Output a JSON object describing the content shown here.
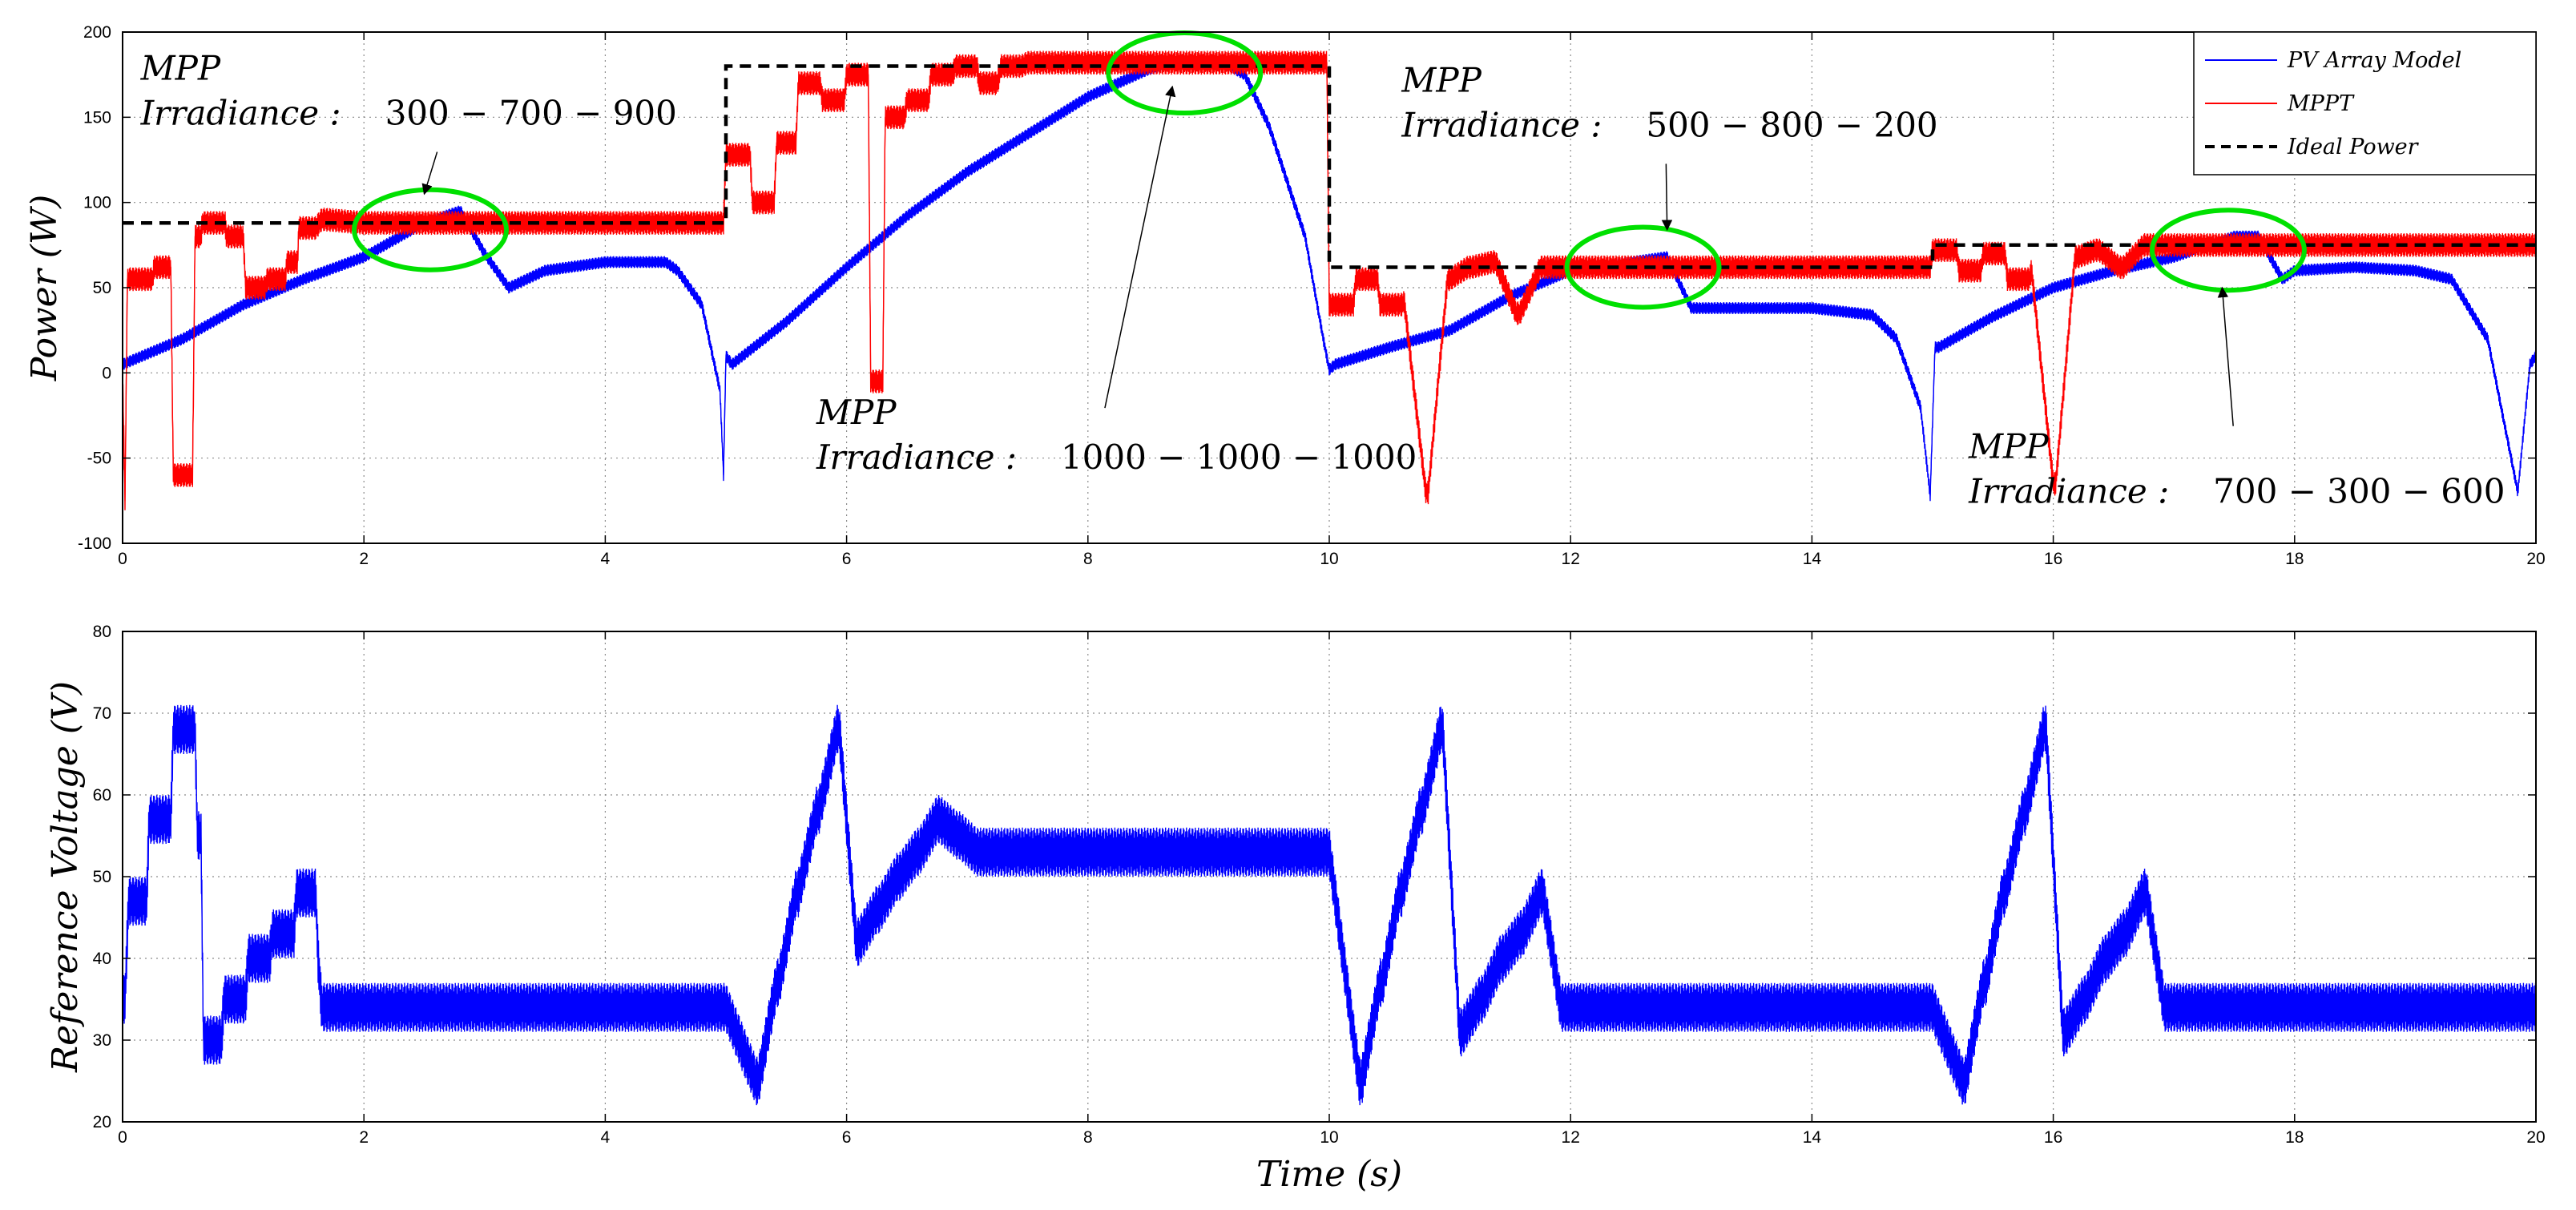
{
  "chart_data": [
    {
      "id": "power",
      "type": "line",
      "title": "",
      "xlabel": "",
      "ylabel": "Power (W)",
      "xlim": [
        0,
        20
      ],
      "ylim": [
        -100,
        200
      ],
      "xticks": [
        0,
        2,
        4,
        6,
        8,
        10,
        12,
        14,
        16,
        18,
        20
      ],
      "xtick_labels": [
        "0",
        "2",
        "4",
        "6",
        "8",
        "10",
        "12",
        "14",
        "16",
        "18",
        "20"
      ],
      "yticks": [
        -100,
        -50,
        0,
        50,
        100,
        150,
        200
      ],
      "ytick_labels": [
        "-100",
        "-50",
        "0",
        "50",
        "100",
        "150",
        "200"
      ],
      "grid": true,
      "legend_position": "top-right",
      "legend": [
        {
          "name": "PV Array Model",
          "color": "#0000ff",
          "style": "solid"
        },
        {
          "name": "MPPT",
          "color": "#ff0000",
          "style": "solid"
        },
        {
          "name": "Ideal Power",
          "color": "#000000",
          "style": "dashed"
        }
      ],
      "series": [
        {
          "name": "PV Array Model",
          "color": "#0000ff",
          "ripple": 7,
          "x": [
            0,
            0.5,
            1,
            1.5,
            2,
            2.5,
            2.8,
            3.0,
            3.2,
            3.5,
            4,
            4.5,
            4.6,
            4.8,
            4.95,
            4.98,
            5.0,
            5.05,
            5.5,
            6,
            6.5,
            7,
            7.5,
            8,
            8.5,
            8.8,
            9.1,
            9.3,
            9.5,
            9.8,
            9.95,
            10.0,
            10.05,
            10.5,
            11,
            11.5,
            12,
            12.5,
            12.8,
            13.0,
            13.5,
            14,
            14.5,
            14.7,
            14.9,
            14.98,
            15.02,
            15.05,
            15.5,
            16,
            16.5,
            17,
            17.5,
            17.7,
            17.9,
            18,
            18.5,
            19,
            19.3,
            19.6,
            19.85,
            19.95,
            20
          ],
          "y": [
            5,
            20,
            40,
            55,
            68,
            88,
            95,
            70,
            50,
            60,
            65,
            65,
            60,
            40,
            -10,
            -60,
            10,
            5,
            30,
            62,
            92,
            118,
            140,
            162,
            178,
            183,
            183,
            175,
            145,
            80,
            20,
            2,
            5,
            15,
            25,
            45,
            60,
            65,
            68,
            38,
            38,
            38,
            34,
            20,
            -20,
            -72,
            15,
            15,
            33,
            50,
            60,
            68,
            80,
            80,
            55,
            60,
            62,
            60,
            55,
            20,
            -70,
            5,
            10
          ]
        },
        {
          "name": "MPPT",
          "color": "#ff0000",
          "ripple": 14,
          "x": [
            0,
            0.02,
            0.04,
            0.06,
            0.25,
            0.26,
            0.4,
            0.42,
            0.58,
            0.6,
            0.65,
            0.66,
            0.85,
            0.86,
            1.0,
            1.02,
            1.18,
            1.2,
            1.35,
            1.36,
            1.45,
            1.46,
            1.6,
            1.65,
            1.68,
            2.0,
            2.5,
            3,
            3.5,
            4,
            4.5,
            4.98,
            5.0,
            5.02,
            5.2,
            5.22,
            5.4,
            5.42,
            5.58,
            5.6,
            5.78,
            5.8,
            5.98,
            6.0,
            6.18,
            6.2,
            6.3,
            6.32,
            6.48,
            6.5,
            6.68,
            6.7,
            6.88,
            6.9,
            7.08,
            7.1,
            7.25,
            7.28,
            7.45,
            7.5,
            7.6,
            8,
            8.5,
            9,
            9.5,
            9.98,
            10.0,
            10.02,
            10.2,
            10.22,
            10.4,
            10.42,
            10.6,
            10.62,
            10.8,
            10.82,
            10.98,
            11.0,
            11.15,
            11.18,
            11.35,
            11.38,
            11.55,
            11.58,
            11.75,
            11.78,
            11.95,
            11.98,
            12.15,
            12.2,
            12.5,
            13,
            13.5,
            14,
            14.5,
            14.98,
            15.0,
            15.02,
            15.2,
            15.22,
            15.4,
            15.42,
            15.6,
            15.62,
            15.8,
            15.82,
            16.0,
            16.02,
            16.18,
            16.2,
            16.35,
            16.38,
            16.55,
            16.58,
            16.75,
            16.78,
            16.95,
            16.98,
            17.15,
            17.18,
            17.4,
            18,
            18.5,
            19,
            19.5,
            20
          ],
          "y": [
            0,
            -75,
            55,
            55,
            55,
            62,
            62,
            -60,
            -60,
            80,
            80,
            88,
            88,
            80,
            80,
            50,
            50,
            55,
            55,
            65,
            65,
            85,
            85,
            90,
            90,
            88,
            88,
            88,
            88,
            88,
            88,
            88,
            128,
            128,
            128,
            100,
            100,
            135,
            135,
            170,
            170,
            160,
            160,
            175,
            175,
            -5,
            -5,
            150,
            150,
            160,
            160,
            175,
            175,
            180,
            180,
            170,
            170,
            180,
            180,
            182,
            182,
            182,
            182,
            182,
            182,
            182,
            40,
            40,
            40,
            55,
            55,
            40,
            40,
            42,
            -70,
            -70,
            55,
            55,
            62,
            62,
            65,
            65,
            35,
            35,
            62,
            62,
            62,
            62,
            62,
            62,
            62,
            62,
            62,
            62,
            62,
            62,
            72,
            72,
            72,
            60,
            60,
            70,
            70,
            55,
            55,
            60,
            -65,
            -65,
            68,
            68,
            72,
            72,
            62,
            62,
            75,
            75,
            75,
            75,
            75,
            75,
            75,
            75,
            75,
            75,
            75,
            75
          ]
        },
        {
          "name": "Ideal Power",
          "color": "#000000",
          "ripple": 0,
          "x": [
            0,
            5,
            5,
            10,
            10,
            15,
            15,
            20
          ],
          "y": [
            88,
            88,
            180,
            180,
            62,
            62,
            75,
            75
          ]
        }
      ],
      "highlight_ellipses": [
        {
          "cx": 2.55,
          "cy": 84
        },
        {
          "cx": 8.8,
          "cy": 176
        },
        {
          "cx": 12.6,
          "cy": 62
        },
        {
          "cx": 17.45,
          "cy": 72
        }
      ],
      "annotations": [
        {
          "id": "a1",
          "line1": "MPP",
          "line2_label": "Irradiance :",
          "line2_value": "300 − 700 − 900",
          "x": 0.15,
          "y": 172,
          "arrow_to": [
            2.5,
            105
          ]
        },
        {
          "id": "a2",
          "line1": "MPP",
          "line2_label": "Irradiance :",
          "line2_value": "1000 − 1000 − 1000",
          "x": 5.75,
          "y": -30,
          "arrow_to": [
            8.7,
            168
          ]
        },
        {
          "id": "a3",
          "line1": "MPP",
          "line2_label": "Irradiance :",
          "line2_value": "500 − 800 − 200",
          "x": 10.6,
          "y": 165,
          "arrow_to": [
            12.8,
            84
          ]
        },
        {
          "id": "a4",
          "line1": "MPP",
          "line2_label": "Irradiance :",
          "line2_value": "700 − 300 − 600",
          "x": 15.3,
          "y": -50,
          "arrow_to": [
            17.4,
            50
          ]
        }
      ]
    },
    {
      "id": "voltage",
      "type": "line",
      "title": "",
      "xlabel": "Time (s)",
      "ylabel": "Reference Voltage (V)",
      "xlim": [
        0,
        20
      ],
      "ylim": [
        20,
        80
      ],
      "xticks": [
        0,
        2,
        4,
        6,
        8,
        10,
        12,
        14,
        16,
        18,
        20
      ],
      "xtick_labels": [
        "0",
        "2",
        "4",
        "6",
        "8",
        "10",
        "12",
        "14",
        "16",
        "18",
        "20"
      ],
      "yticks": [
        20,
        30,
        40,
        50,
        60,
        70,
        80
      ],
      "ytick_labels": [
        "20",
        "30",
        "40",
        "50",
        "60",
        "70",
        "80"
      ],
      "grid": true,
      "series": [
        {
          "name": "Reference Voltage",
          "color": "#0000ff",
          "ripple": 6,
          "x": [
            0,
            0.02,
            0.05,
            0.2,
            0.22,
            0.4,
            0.42,
            0.6,
            0.62,
            0.65,
            0.67,
            0.82,
            0.84,
            1.02,
            1.04,
            1.22,
            1.24,
            1.42,
            1.44,
            1.6,
            1.62,
            1.65,
            2,
            3,
            4,
            5,
            5.25,
            5.27,
            5.42,
            5.44,
            5.58,
            5.6,
            5.75,
            5.77,
            5.92,
            5.94,
            6.08,
            6.1,
            6.25,
            6.27,
            6.42,
            6.44,
            6.58,
            6.6,
            6.75,
            6.77,
            6.92,
            6.94,
            7.08,
            7.1,
            7.22,
            7.25,
            8,
            9,
            10,
            10.25,
            10.27,
            10.42,
            10.44,
            10.58,
            10.6,
            10.75,
            10.77,
            10.92,
            10.94,
            11.08,
            11.1,
            11.25,
            11.27,
            11.42,
            11.44,
            11.58,
            11.6,
            11.75,
            11.77,
            11.92,
            11.94,
            12.08,
            12.1,
            12.22,
            12.25,
            13,
            14,
            15,
            15.25,
            15.27,
            15.42,
            15.44,
            15.58,
            15.6,
            15.75,
            15.77,
            15.92,
            15.94,
            16.08,
            16.1,
            16.25,
            16.27,
            16.42,
            16.44,
            16.58,
            16.6,
            16.75,
            16.77,
            16.92,
            16.94,
            17.08,
            17.1,
            17.22,
            17.25,
            18,
            19,
            20
          ],
          "y": [
            35,
            35,
            47,
            47,
            57,
            57,
            68,
            68,
            55,
            55,
            30,
            30,
            35,
            35,
            40,
            40,
            43,
            43,
            48,
            48,
            40,
            34,
            34,
            34,
            34,
            34,
            25,
            25,
            37,
            37,
            48,
            48,
            58,
            58,
            68,
            68,
            42,
            42,
            46,
            46,
            50,
            50,
            53,
            53,
            57,
            57,
            55,
            55,
            53,
            53,
            53,
            53,
            53,
            53,
            53,
            25,
            25,
            37,
            37,
            48,
            48,
            58,
            58,
            68,
            68,
            31,
            31,
            35,
            35,
            40,
            40,
            43,
            43,
            48,
            48,
            34,
            34,
            34,
            34,
            34,
            34,
            34,
            34,
            34,
            25,
            25,
            37,
            37,
            48,
            48,
            58,
            58,
            68,
            68,
            31,
            31,
            35,
            35,
            40,
            40,
            43,
            43,
            48,
            48,
            34,
            34,
            34,
            34,
            34,
            34,
            34,
            34,
            34
          ]
        }
      ]
    }
  ]
}
